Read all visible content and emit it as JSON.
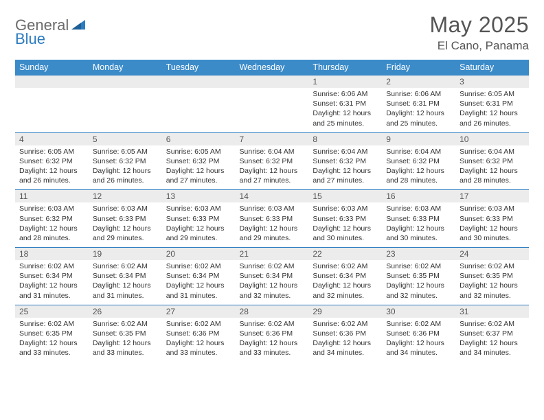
{
  "brand": {
    "part1": "General",
    "part2": "Blue"
  },
  "title": "May 2025",
  "location": "El Cano, Panama",
  "colors": {
    "header_bg": "#3b8bc9",
    "header_text": "#ffffff",
    "border": "#2b7bbf",
    "daynum_bg": "#ececec",
    "body_text": "#333333",
    "title_text": "#555555",
    "brand_gray": "#6b6b6b",
    "brand_blue": "#2b7bbf",
    "page_bg": "#ffffff"
  },
  "typography": {
    "title_fontsize": 32,
    "location_fontsize": 17,
    "dayhead_fontsize": 12.5,
    "daynum_fontsize": 12,
    "body_fontsize": 10.5,
    "font_family": "Arial"
  },
  "day_names": [
    "Sunday",
    "Monday",
    "Tuesday",
    "Wednesday",
    "Thursday",
    "Friday",
    "Saturday"
  ],
  "weeks": [
    [
      {
        "n": "",
        "lines": []
      },
      {
        "n": "",
        "lines": []
      },
      {
        "n": "",
        "lines": []
      },
      {
        "n": "",
        "lines": []
      },
      {
        "n": "1",
        "lines": [
          "Sunrise: 6:06 AM",
          "Sunset: 6:31 PM",
          "Daylight: 12 hours",
          "and 25 minutes."
        ]
      },
      {
        "n": "2",
        "lines": [
          "Sunrise: 6:06 AM",
          "Sunset: 6:31 PM",
          "Daylight: 12 hours",
          "and 25 minutes."
        ]
      },
      {
        "n": "3",
        "lines": [
          "Sunrise: 6:05 AM",
          "Sunset: 6:31 PM",
          "Daylight: 12 hours",
          "and 26 minutes."
        ]
      }
    ],
    [
      {
        "n": "4",
        "lines": [
          "Sunrise: 6:05 AM",
          "Sunset: 6:32 PM",
          "Daylight: 12 hours",
          "and 26 minutes."
        ]
      },
      {
        "n": "5",
        "lines": [
          "Sunrise: 6:05 AM",
          "Sunset: 6:32 PM",
          "Daylight: 12 hours",
          "and 26 minutes."
        ]
      },
      {
        "n": "6",
        "lines": [
          "Sunrise: 6:05 AM",
          "Sunset: 6:32 PM",
          "Daylight: 12 hours",
          "and 27 minutes."
        ]
      },
      {
        "n": "7",
        "lines": [
          "Sunrise: 6:04 AM",
          "Sunset: 6:32 PM",
          "Daylight: 12 hours",
          "and 27 minutes."
        ]
      },
      {
        "n": "8",
        "lines": [
          "Sunrise: 6:04 AM",
          "Sunset: 6:32 PM",
          "Daylight: 12 hours",
          "and 27 minutes."
        ]
      },
      {
        "n": "9",
        "lines": [
          "Sunrise: 6:04 AM",
          "Sunset: 6:32 PM",
          "Daylight: 12 hours",
          "and 28 minutes."
        ]
      },
      {
        "n": "10",
        "lines": [
          "Sunrise: 6:04 AM",
          "Sunset: 6:32 PM",
          "Daylight: 12 hours",
          "and 28 minutes."
        ]
      }
    ],
    [
      {
        "n": "11",
        "lines": [
          "Sunrise: 6:03 AM",
          "Sunset: 6:32 PM",
          "Daylight: 12 hours",
          "and 28 minutes."
        ]
      },
      {
        "n": "12",
        "lines": [
          "Sunrise: 6:03 AM",
          "Sunset: 6:33 PM",
          "Daylight: 12 hours",
          "and 29 minutes."
        ]
      },
      {
        "n": "13",
        "lines": [
          "Sunrise: 6:03 AM",
          "Sunset: 6:33 PM",
          "Daylight: 12 hours",
          "and 29 minutes."
        ]
      },
      {
        "n": "14",
        "lines": [
          "Sunrise: 6:03 AM",
          "Sunset: 6:33 PM",
          "Daylight: 12 hours",
          "and 29 minutes."
        ]
      },
      {
        "n": "15",
        "lines": [
          "Sunrise: 6:03 AM",
          "Sunset: 6:33 PM",
          "Daylight: 12 hours",
          "and 30 minutes."
        ]
      },
      {
        "n": "16",
        "lines": [
          "Sunrise: 6:03 AM",
          "Sunset: 6:33 PM",
          "Daylight: 12 hours",
          "and 30 minutes."
        ]
      },
      {
        "n": "17",
        "lines": [
          "Sunrise: 6:03 AM",
          "Sunset: 6:33 PM",
          "Daylight: 12 hours",
          "and 30 minutes."
        ]
      }
    ],
    [
      {
        "n": "18",
        "lines": [
          "Sunrise: 6:02 AM",
          "Sunset: 6:34 PM",
          "Daylight: 12 hours",
          "and 31 minutes."
        ]
      },
      {
        "n": "19",
        "lines": [
          "Sunrise: 6:02 AM",
          "Sunset: 6:34 PM",
          "Daylight: 12 hours",
          "and 31 minutes."
        ]
      },
      {
        "n": "20",
        "lines": [
          "Sunrise: 6:02 AM",
          "Sunset: 6:34 PM",
          "Daylight: 12 hours",
          "and 31 minutes."
        ]
      },
      {
        "n": "21",
        "lines": [
          "Sunrise: 6:02 AM",
          "Sunset: 6:34 PM",
          "Daylight: 12 hours",
          "and 32 minutes."
        ]
      },
      {
        "n": "22",
        "lines": [
          "Sunrise: 6:02 AM",
          "Sunset: 6:34 PM",
          "Daylight: 12 hours",
          "and 32 minutes."
        ]
      },
      {
        "n": "23",
        "lines": [
          "Sunrise: 6:02 AM",
          "Sunset: 6:35 PM",
          "Daylight: 12 hours",
          "and 32 minutes."
        ]
      },
      {
        "n": "24",
        "lines": [
          "Sunrise: 6:02 AM",
          "Sunset: 6:35 PM",
          "Daylight: 12 hours",
          "and 32 minutes."
        ]
      }
    ],
    [
      {
        "n": "25",
        "lines": [
          "Sunrise: 6:02 AM",
          "Sunset: 6:35 PM",
          "Daylight: 12 hours",
          "and 33 minutes."
        ]
      },
      {
        "n": "26",
        "lines": [
          "Sunrise: 6:02 AM",
          "Sunset: 6:35 PM",
          "Daylight: 12 hours",
          "and 33 minutes."
        ]
      },
      {
        "n": "27",
        "lines": [
          "Sunrise: 6:02 AM",
          "Sunset: 6:36 PM",
          "Daylight: 12 hours",
          "and 33 minutes."
        ]
      },
      {
        "n": "28",
        "lines": [
          "Sunrise: 6:02 AM",
          "Sunset: 6:36 PM",
          "Daylight: 12 hours",
          "and 33 minutes."
        ]
      },
      {
        "n": "29",
        "lines": [
          "Sunrise: 6:02 AM",
          "Sunset: 6:36 PM",
          "Daylight: 12 hours",
          "and 34 minutes."
        ]
      },
      {
        "n": "30",
        "lines": [
          "Sunrise: 6:02 AM",
          "Sunset: 6:36 PM",
          "Daylight: 12 hours",
          "and 34 minutes."
        ]
      },
      {
        "n": "31",
        "lines": [
          "Sunrise: 6:02 AM",
          "Sunset: 6:37 PM",
          "Daylight: 12 hours",
          "and 34 minutes."
        ]
      }
    ]
  ]
}
